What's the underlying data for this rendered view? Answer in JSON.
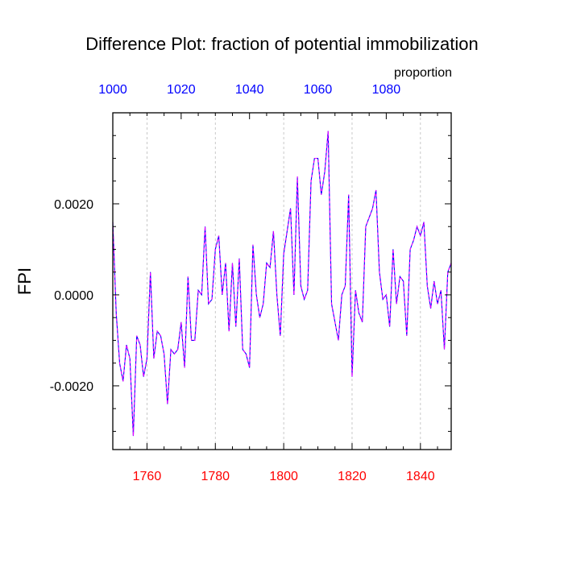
{
  "chart_data": {
    "type": "line",
    "title": "Difference Plot: fraction of potential immobilization",
    "ylabel": "FPI",
    "top_axis_label": "proportion",
    "xlim": [
      1750,
      1849
    ],
    "ylim": [
      -0.0034,
      0.004
    ],
    "bottom_ticks": [
      {
        "value": 1760,
        "label": "1760"
      },
      {
        "value": 1780,
        "label": "1780"
      },
      {
        "value": 1800,
        "label": "1800"
      },
      {
        "value": 1820,
        "label": "1820"
      },
      {
        "value": 1840,
        "label": "1840"
      }
    ],
    "top_ticks": [
      {
        "value": 1750,
        "label": "1000"
      },
      {
        "value": 1770,
        "label": "1020"
      },
      {
        "value": 1790,
        "label": "1040"
      },
      {
        "value": 1810,
        "label": "1060"
      },
      {
        "value": 1830,
        "label": "1080"
      }
    ],
    "y_ticks": [
      {
        "value": 0.002,
        "label": "0.0020"
      },
      {
        "value": 0.0,
        "label": "0.0000"
      },
      {
        "value": -0.002,
        "label": "-0.0020"
      }
    ],
    "grid_vertical": [
      1760,
      1780,
      1800,
      1820,
      1840
    ],
    "colors": {
      "bottom_ticks": "#ff0000",
      "top_ticks": "#0000ff",
      "series_a": "#0000ff",
      "series_b": "#ff00ff",
      "grid": "#bbbbbb"
    },
    "series": [
      {
        "name": "FPI",
        "x_start": 1750,
        "x_step": 1,
        "values": [
          0.0016,
          -0.0004,
          -0.0015,
          -0.0019,
          -0.0011,
          -0.0014,
          -0.0031,
          -0.0009,
          -0.0011,
          -0.0018,
          -0.0014,
          0.0005,
          -0.0014,
          -0.0008,
          -0.0009,
          -0.0013,
          -0.0024,
          -0.0012,
          -0.0013,
          -0.0012,
          -0.0006,
          -0.0016,
          0.0004,
          -0.001,
          -0.001,
          0.0001,
          0.0,
          0.0015,
          -0.0002,
          -0.0001,
          0.001,
          0.0013,
          0.0,
          0.0007,
          -0.0008,
          0.0007,
          -0.0007,
          0.0008,
          -0.0012,
          -0.0013,
          -0.0016,
          0.0011,
          0.0,
          -0.0005,
          -0.0002,
          0.0007,
          0.0006,
          0.0014,
          0.0,
          -0.0009,
          0.0009,
          0.0014,
          0.0019,
          0.0,
          0.0026,
          0.0002,
          -0.0001,
          0.0001,
          0.0025,
          0.003,
          0.003,
          0.0022,
          0.0027,
          0.0036,
          -0.0002,
          -0.0006,
          -0.001,
          0.0,
          0.0002,
          0.0022,
          -0.0018,
          0.0001,
          -0.0004,
          -0.0006,
          0.0015,
          0.0017,
          0.0019,
          0.0023,
          0.0005,
          -0.0001,
          0.0,
          -0.0007,
          0.001,
          -0.0002,
          0.0004,
          0.0003,
          -0.0009,
          0.001,
          0.0012,
          0.0015,
          0.0013,
          0.0016,
          0.0002,
          -0.0003,
          0.0003,
          -0.0002,
          0.0001,
          -0.0012,
          0.0005,
          0.0007
        ]
      }
    ]
  }
}
